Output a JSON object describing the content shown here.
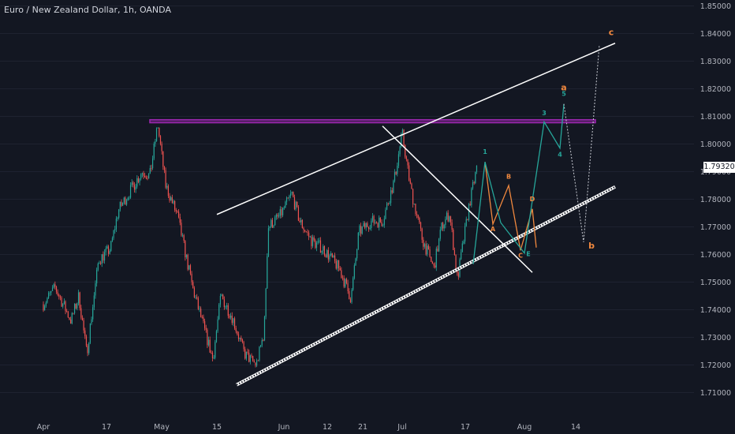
{
  "header": {
    "title": "Euro / New Zealand Dollar, 1h, OANDA"
  },
  "last_price": "1.79320",
  "colors": {
    "background": "#131722",
    "up": "#26a69a",
    "down": "#ef5350",
    "resistance_zone": "#9c27b0",
    "trendline": "#ffffff",
    "wave_teal": "#26a69a",
    "wave_orange": "#f0883e",
    "axis_text": "#b2b5be",
    "grid": "#1e2230"
  },
  "chart_data": {
    "type": "candlestick",
    "title": "Euro / New Zealand Dollar, 1h, OANDA",
    "ylim": [
      1.705,
      1.8525
    ],
    "y_ticks": [
      "1.85000",
      "1.84000",
      "1.83000",
      "1.82000",
      "1.81000",
      "1.80000",
      "1.79000",
      "1.78000",
      "1.77000",
      "1.76000",
      "1.75000",
      "1.74000",
      "1.73000",
      "1.72000",
      "1.71000"
    ],
    "x_ticks": [
      "Apr",
      "17",
      "May",
      "15",
      "Jun",
      "12",
      "21",
      "Jul",
      "17",
      "Aug",
      "14"
    ],
    "price_path": [
      [
        "Apr 1",
        1.742
      ],
      [
        "Apr 4",
        1.748
      ],
      [
        "Apr 8",
        1.736
      ],
      [
        "Apr 10",
        1.745
      ],
      [
        "Apr 12",
        1.724
      ],
      [
        "Apr 15",
        1.758
      ],
      [
        "Apr 18",
        1.762
      ],
      [
        "Apr 20",
        1.776
      ],
      [
        "Apr 23",
        1.783
      ],
      [
        "Apr 26",
        1.79
      ],
      [
        "Apr 28",
        1.7885
      ],
      [
        "Apr 30",
        1.807
      ],
      [
        "May 2",
        1.785
      ],
      [
        "May 5",
        1.774
      ],
      [
        "May 9",
        1.747
      ],
      [
        "May 12",
        1.732
      ],
      [
        "May 14",
        1.722
      ],
      [
        "May 16",
        1.745
      ],
      [
        "May 19",
        1.737
      ],
      [
        "May 22",
        1.724
      ],
      [
        "May 25",
        1.72
      ],
      [
        "May 27",
        1.732
      ],
      [
        "May 28",
        1.77
      ],
      [
        "May 31",
        1.774
      ],
      [
        "Jun 3",
        1.782
      ],
      [
        "Jun 5",
        1.772
      ],
      [
        "Jun 8",
        1.765
      ],
      [
        "Jun 11",
        1.762
      ],
      [
        "Jun 15",
        1.755
      ],
      [
        "Jun 18",
        1.744
      ],
      [
        "Jun 20",
        1.768
      ],
      [
        "Jun 23",
        1.772
      ],
      [
        "Jun 26",
        1.772
      ],
      [
        "Jun 29",
        1.787
      ],
      [
        "Jul 1",
        1.804
      ],
      [
        "Jul 3",
        1.785
      ],
      [
        "Jul 6",
        1.766
      ],
      [
        "Jul 9",
        1.755
      ],
      [
        "Jul 11",
        1.77
      ],
      [
        "Jul 13",
        1.775
      ],
      [
        "Jul 15",
        1.751
      ],
      [
        "Jul 18",
        1.778
      ],
      [
        "Jul 20",
        1.792
      ]
    ],
    "resistance_zone": {
      "y": [
        1.8077,
        1.8088
      ],
      "x": [
        "Apr 28",
        "Aug 19"
      ]
    },
    "upper_trendline": [
      [
        "May 15",
        1.7745
      ],
      [
        "Aug 24",
        1.8365
      ]
    ],
    "lower_channel": [
      [
        "May 20",
        1.7128
      ],
      [
        "Aug 24",
        1.7845
      ]
    ],
    "descending_line": [
      [
        "Jun 26",
        1.8065
      ],
      [
        "Aug 3",
        1.7535
      ]
    ],
    "teal_wave": [
      [
        "Jul 19",
        1.7565
      ],
      [
        "Jul 22",
        1.7935
      ],
      [
        "Jul 26",
        1.7715
      ],
      [
        "Aug 1",
        1.7605
      ],
      [
        "Aug 6",
        1.808
      ],
      [
        "Aug 10",
        1.7985
      ],
      [
        "Aug 11",
        1.8145
      ]
    ],
    "orange_wave": [
      [
        "Jul 22",
        1.7935
      ],
      [
        "Jul 24",
        1.771
      ],
      [
        "Jul 28",
        1.785
      ],
      [
        "Jul 31",
        1.7615
      ],
      [
        "Aug 3",
        1.7765
      ],
      [
        "Aug 4",
        1.7625
      ]
    ],
    "dotted_projection": [
      [
        "Aug 11",
        1.8145
      ],
      [
        "Aug 16",
        1.7645
      ],
      [
        "Aug 20",
        1.836
      ]
    ],
    "wave_labels_teal": [
      "1",
      "3",
      "5",
      "4",
      "E"
    ],
    "wave_labels_orange": [
      "B",
      "D",
      "A",
      "C",
      "a",
      "b",
      "c"
    ]
  }
}
